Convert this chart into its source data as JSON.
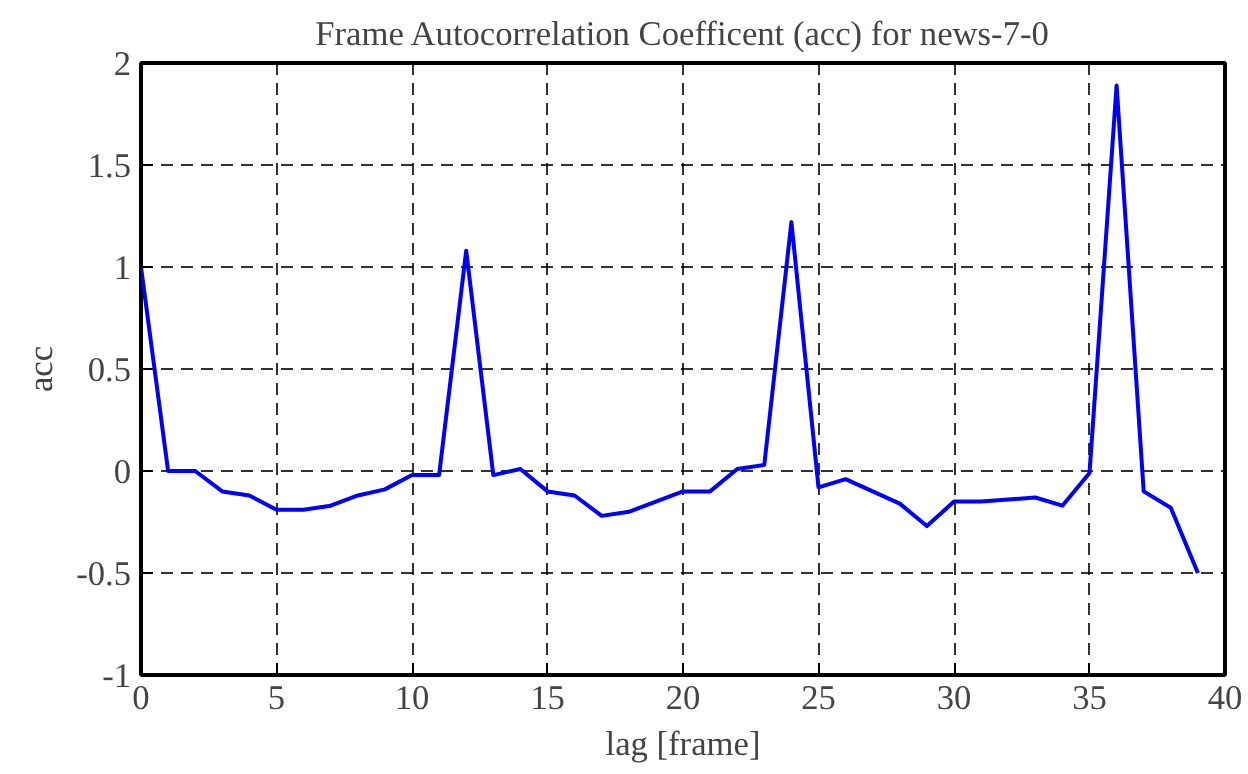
{
  "chart_data": {
    "type": "line",
    "title": "Frame Autocorrelation Coefficent (acc) for news-7-0",
    "xlabel": "lag [frame]",
    "ylabel": "acc",
    "x": [
      0,
      1,
      2,
      3,
      4,
      5,
      6,
      7,
      8,
      9,
      10,
      11,
      12,
      13,
      14,
      15,
      16,
      17,
      18,
      19,
      20,
      21,
      22,
      23,
      24,
      25,
      26,
      27,
      28,
      29,
      30,
      31,
      32,
      33,
      34,
      35,
      36,
      37,
      38,
      39
    ],
    "series": [
      {
        "color": "#0000ff",
        "values": [
          1.0,
          0,
          0,
          -0.1,
          -0.12,
          -0.19,
          -0.19,
          -0.17,
          -0.12,
          -0.09,
          -0.02,
          -0.02,
          1.08,
          -0.02,
          0.01,
          -0.1,
          -0.12,
          -0.22,
          -0.2,
          -0.15,
          -0.1,
          -0.1,
          0.01,
          0.03,
          1.22,
          -0.08,
          -0.04,
          -0.1,
          -0.16,
          -0.27,
          -0.15,
          -0.15,
          -0.14,
          -0.13,
          -0.17,
          -0.01,
          1.89,
          -0.1,
          -0.18,
          -0.5
        ]
      }
    ],
    "xlim": [
      0,
      40
    ],
    "ylim": [
      -1,
      2
    ],
    "xticks": [
      0,
      5,
      10,
      15,
      20,
      25,
      30,
      35,
      40
    ],
    "yticks": [
      -1,
      {
        "value": -0.5,
        "label": "-0.5"
      },
      0,
      {
        "value": 0.5,
        "label": "0.5"
      },
      1,
      {
        "value": 1.5,
        "label": "1.5"
      },
      2
    ],
    "grid": true,
    "line_style": "solid"
  }
}
